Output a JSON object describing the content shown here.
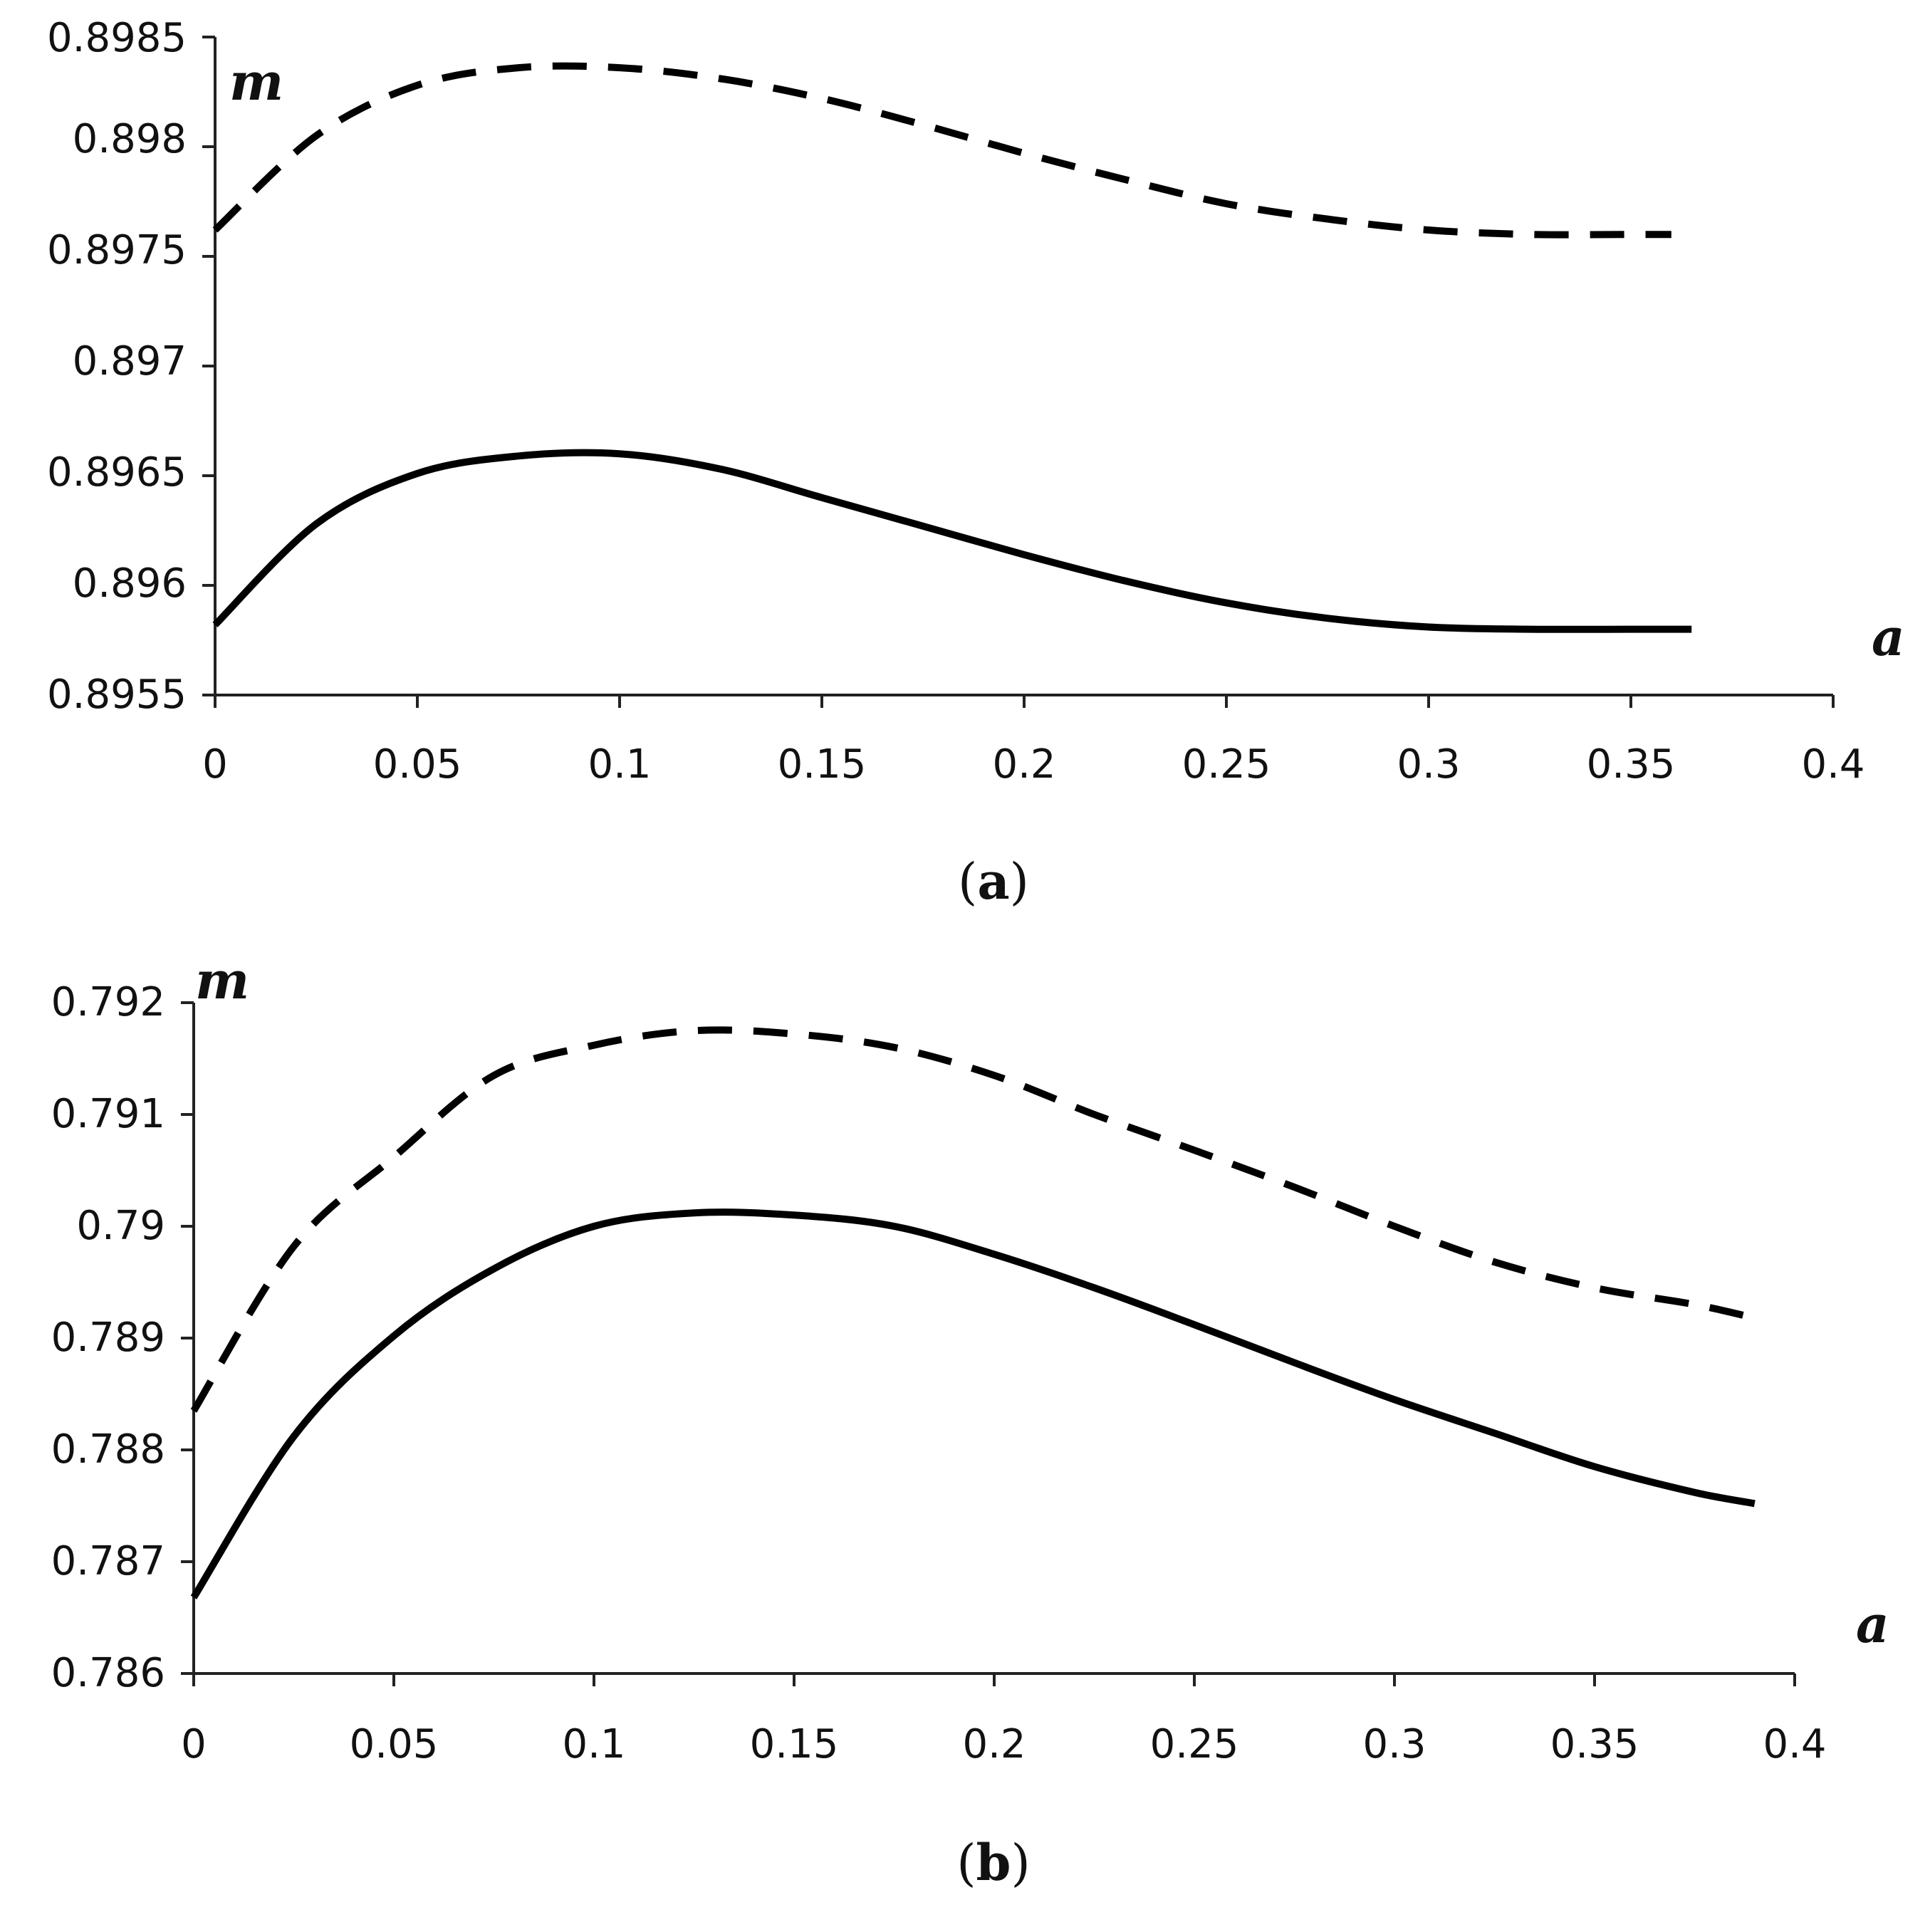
{
  "chart_data": [
    {
      "type": "line",
      "caption": "a",
      "xlabel": "a",
      "ylabel": "m",
      "xlim": [
        0,
        0.4
      ],
      "ylim": [
        0.8955,
        0.8985
      ],
      "xticks": [
        "0",
        "0.05",
        "0.1",
        "0.15",
        "0.2",
        "0.25",
        "0.3",
        "0.35",
        "0.4"
      ],
      "yticks": [
        "0.8955",
        "0.896",
        "0.8965",
        "0.897",
        "0.8975",
        "0.898",
        "0.8985"
      ],
      "grid": false,
      "series": [
        {
          "name": "dashed",
          "style": "dashed",
          "x": [
            0,
            0.025,
            0.05,
            0.075,
            0.1,
            0.125,
            0.15,
            0.175,
            0.2,
            0.225,
            0.25,
            0.275,
            0.3,
            0.325,
            0.35,
            0.36
          ],
          "y": [
            0.89762,
            0.89805,
            0.89828,
            0.89836,
            0.89836,
            0.89831,
            0.89822,
            0.8981,
            0.89797,
            0.89785,
            0.89774,
            0.89767,
            0.89762,
            0.8976,
            0.8976,
            0.8976
          ]
        },
        {
          "name": "solid",
          "style": "solid",
          "x": [
            0,
            0.025,
            0.05,
            0.075,
            0.1,
            0.125,
            0.15,
            0.175,
            0.2,
            0.225,
            0.25,
            0.275,
            0.3,
            0.325,
            0.35,
            0.365
          ],
          "y": [
            0.89582,
            0.89628,
            0.89651,
            0.89659,
            0.8966,
            0.89653,
            0.8964,
            0.89627,
            0.89614,
            0.89602,
            0.89592,
            0.89585,
            0.89581,
            0.8958,
            0.8958,
            0.8958
          ]
        }
      ]
    },
    {
      "type": "line",
      "caption": "b",
      "xlabel": "a",
      "ylabel": "m",
      "xlim": [
        0,
        0.4
      ],
      "ylim": [
        0.786,
        0.792
      ],
      "xticks": [
        "0",
        "0.05",
        "0.1",
        "0.15",
        "0.2",
        "0.25",
        "0.3",
        "0.35",
        "0.4"
      ],
      "yticks": [
        "0.786",
        "0.787",
        "0.788",
        "0.789",
        "0.79",
        "0.791",
        "0.792"
      ],
      "grid": false,
      "series": [
        {
          "name": "dashed",
          "style": "dashed",
          "x": [
            0,
            0.025,
            0.05,
            0.075,
            0.1,
            0.125,
            0.15,
            0.175,
            0.2,
            0.225,
            0.25,
            0.275,
            0.3,
            0.325,
            0.35,
            0.375,
            0.39
          ],
          "y": [
            0.78835,
            0.78982,
            0.79062,
            0.79135,
            0.79162,
            0.79175,
            0.79172,
            0.7916,
            0.79135,
            0.791,
            0.79068,
            0.79035,
            0.79,
            0.78968,
            0.78945,
            0.7893,
            0.78918
          ]
        },
        {
          "name": "solid",
          "style": "solid",
          "x": [
            0,
            0.025,
            0.05,
            0.075,
            0.1,
            0.125,
            0.15,
            0.175,
            0.2,
            0.225,
            0.25,
            0.275,
            0.3,
            0.325,
            0.35,
            0.375,
            0.39
          ],
          "y": [
            0.78668,
            0.78812,
            0.78902,
            0.78962,
            0.79,
            0.79012,
            0.7901,
            0.79,
            0.78975,
            0.78945,
            0.78912,
            0.78878,
            0.78845,
            0.78815,
            0.78785,
            0.78762,
            0.78752
          ]
        }
      ]
    }
  ]
}
